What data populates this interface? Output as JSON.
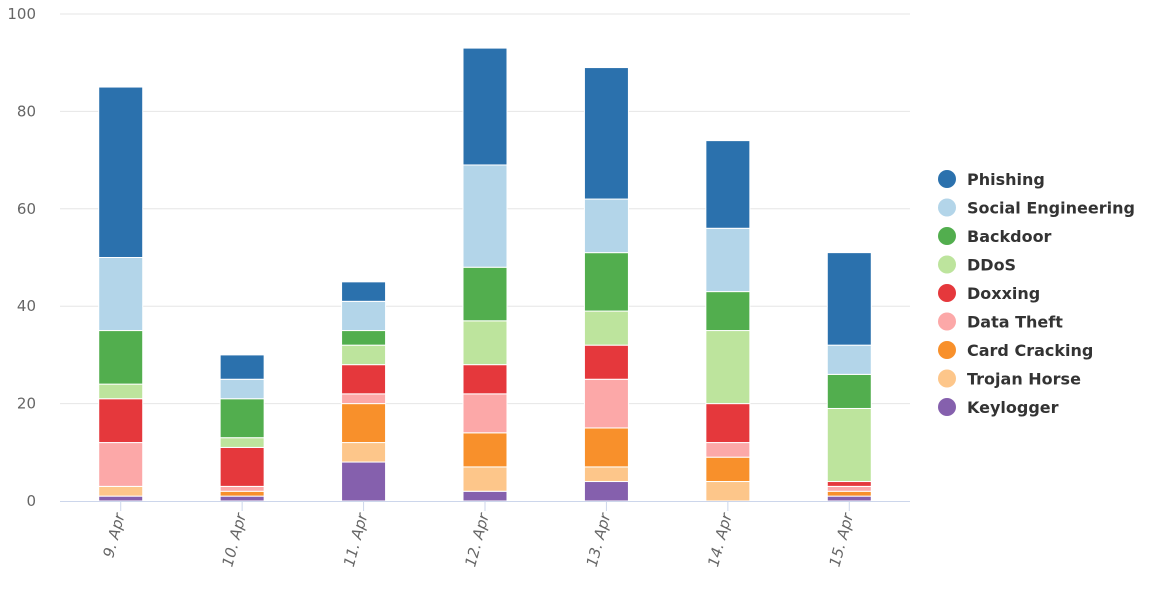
{
  "chart_data": {
    "type": "bar",
    "stacked": true,
    "categories": [
      "9. Apr",
      "10. Apr",
      "11. Apr",
      "12. Apr",
      "13. Apr",
      "14. Apr",
      "15. Apr"
    ],
    "ylim": [
      0,
      100
    ],
    "yticks": [
      0,
      20,
      40,
      60,
      80,
      100
    ],
    "grid": true,
    "legend_position": "right",
    "series": [
      {
        "name": "Keylogger",
        "color": "#8560ad",
        "values": [
          1,
          1,
          8,
          2,
          4,
          0,
          1
        ]
      },
      {
        "name": "Trojan Horse",
        "color": "#fdc68a",
        "values": [
          2,
          0,
          4,
          5,
          3,
          4,
          0
        ]
      },
      {
        "name": "Card Cracking",
        "color": "#f8902b",
        "values": [
          0,
          1,
          8,
          7,
          8,
          5,
          1
        ]
      },
      {
        "name": "Data Theft",
        "color": "#fca8a8",
        "values": [
          9,
          1,
          2,
          8,
          10,
          3,
          1
        ]
      },
      {
        "name": "Doxxing",
        "color": "#e5383c",
        "values": [
          9,
          8,
          6,
          6,
          7,
          8,
          1
        ]
      },
      {
        "name": "DDoS",
        "color": "#bde49d",
        "values": [
          3,
          2,
          4,
          9,
          7,
          15,
          15
        ]
      },
      {
        "name": "Backdoor",
        "color": "#52ae4e",
        "values": [
          11,
          8,
          3,
          11,
          12,
          8,
          7
        ]
      },
      {
        "name": "Social Engineering",
        "color": "#b3d5e9",
        "values": [
          15,
          4,
          6,
          21,
          11,
          13,
          6
        ]
      },
      {
        "name": "Phishing",
        "color": "#2b71ad",
        "values": [
          35,
          5,
          4,
          24,
          27,
          18,
          19
        ]
      }
    ]
  }
}
